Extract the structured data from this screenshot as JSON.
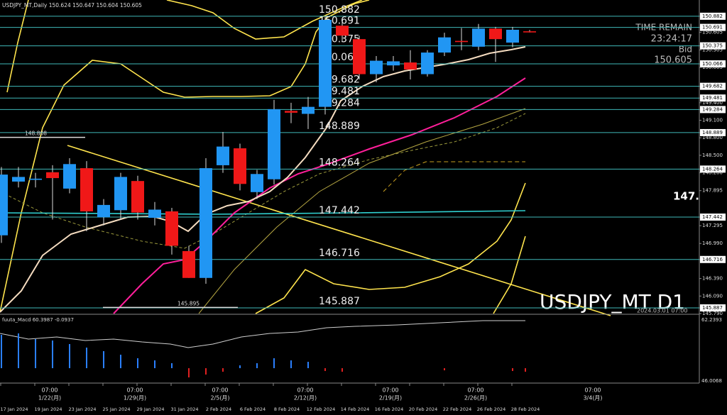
{
  "header": "USDJPY_MT,Daily  150.624 150.647 150.604 150.605",
  "chart_data": {
    "type": "candlestick",
    "symbol_label": "USDJPY_MT D1",
    "timestamp": "2024.03.01 07:00",
    "big_price": "147.",
    "ylim": [
      145.79,
      151.16
    ],
    "yticks": [
      150.882,
      150.691,
      150.605,
      150.375,
      150.305,
      150.066,
      150.005,
      149.682,
      149.481,
      {
        "value": 149.4,
        "label": "149.400"
      },
      149.284,
      {
        "value": 149.1,
        "label": "149.100"
      },
      148.889,
      {
        "value": 148.8,
        "label": "148.800"
      },
      {
        "value": 148.5,
        "label": "148.500"
      },
      148.264,
      {
        "value": 148.2,
        "label": "148.200"
      },
      147.895,
      147.442,
      147.295,
      {
        "value": 146.99,
        "label": "146.990"
      },
      146.716,
      {
        "value": 146.39,
        "label": "146.390"
      },
      {
        "value": 146.09,
        "label": "146.090"
      },
      145.887,
      {
        "value": 145.79,
        "label": "145.790"
      }
    ],
    "levels": [
      150.882,
      150.691,
      150.375,
      150.066,
      149.682,
      149.481,
      149.284,
      148.889,
      148.264,
      147.442,
      146.716,
      145.887
    ],
    "old_levels": [
      148.808,
      145.895
    ],
    "up_color": "#2196f3",
    "down_color": "#f01818",
    "level_color": "#3fb8b8",
    "ohlc": {
      "open": [
        147.13,
        148.05,
        148.08,
        148.21,
        147.93,
        148.28,
        147.44,
        147.56,
        148.06,
        147.43,
        147.54,
        146.86,
        146.4,
        148.33,
        148.62,
        147.87,
        148.09,
        149.26,
        149.21,
        149.33,
        150.72,
        150.49,
        149.89,
        150.04,
        150.09,
        149.89,
        150.26,
        150.46,
        150.36,
        150.67,
        150.43,
        150.624
      ],
      "high": [
        148.3,
        148.3,
        148.2,
        148.33,
        148.45,
        148.4,
        147.75,
        148.2,
        148.15,
        147.7,
        147.6,
        146.95,
        148.45,
        148.9,
        148.7,
        148.25,
        149.45,
        149.4,
        149.5,
        150.88,
        150.8,
        150.55,
        150.2,
        150.2,
        150.3,
        150.3,
        150.6,
        150.68,
        150.75,
        150.7,
        150.7,
        150.647
      ],
      "low": [
        147.0,
        147.95,
        147.95,
        147.4,
        147.85,
        147.2,
        147.3,
        147.4,
        147.4,
        147.3,
        146.8,
        146.4,
        146.3,
        148.2,
        147.9,
        147.75,
        148.0,
        149.05,
        148.95,
        149.2,
        150.45,
        149.8,
        149.75,
        149.95,
        149.8,
        149.85,
        150.2,
        150.3,
        150.3,
        150.1,
        150.35,
        150.604
      ],
      "close": [
        148.17,
        148.13,
        148.1,
        148.11,
        148.35,
        147.54,
        147.65,
        148.13,
        147.52,
        147.57,
        146.95,
        146.4,
        148.28,
        148.65,
        148.01,
        148.18,
        149.29,
        149.23,
        149.33,
        150.82,
        150.55,
        149.89,
        150.12,
        150.11,
        149.97,
        150.26,
        150.52,
        150.44,
        150.67,
        150.49,
        150.65,
        150.605
      ]
    },
    "time_axis": {
      "dates": [
        "17 Jan 2024",
        "19 Jan 2024",
        "23 Jan 2024",
        "25 Jan 2024",
        "29 Jan 2024",
        "31 Jan 2024",
        "2 Feb 2024",
        "6 Feb 2024",
        "8 Feb 2024",
        "12 Feb 2024",
        "14 Feb 2024",
        "16 Feb 2024",
        "20 Feb 2024",
        "22 Feb 2024",
        "26 Feb 2024",
        "28 Feb 2024"
      ],
      "weeks": [
        {
          "time": "07:00",
          "date": "1/22(月)"
        },
        {
          "time": "07:00",
          "date": "1/29(月)"
        },
        {
          "time": "07:00",
          "date": "2/5(月)"
        },
        {
          "time": "07:00",
          "date": "2/12(月)"
        },
        {
          "time": "07:00",
          "date": "2/19(月)"
        },
        {
          "time": "07:00",
          "date": "2/26(月)"
        },
        {
          "time": "07:00",
          "date": "3/4(月)"
        }
      ]
    },
    "info": {
      "time_label": "TIME REMAIN",
      "time": "23:24:17",
      "bid_label": "Bid",
      "bid": 150.605
    },
    "macd": {
      "label": "fuuta_Macd 60.3987 -0.0937",
      "max_label": "62.2393",
      "min_label": "46.0068"
    }
  }
}
